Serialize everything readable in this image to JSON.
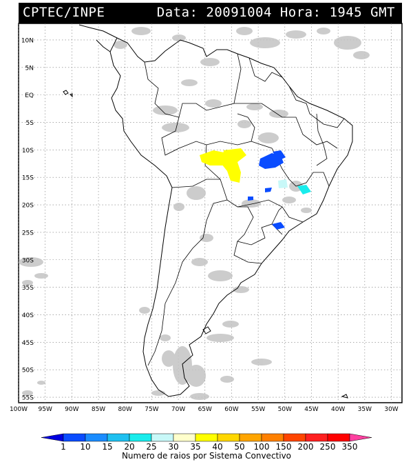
{
  "header": {
    "source": "CPTEC/INPE",
    "datetime": "Data: 20091004 Hora: 1945 GMT"
  },
  "map": {
    "lat_labels": [
      "10N",
      "5N",
      "EQ",
      "5S",
      "10S",
      "15S",
      "20S",
      "25S",
      "30S",
      "35S",
      "40S",
      "45S",
      "50S",
      "55S"
    ],
    "lon_labels": [
      "100W",
      "95W",
      "90W",
      "85W",
      "80W",
      "75W",
      "70W",
      "65W",
      "60W",
      "55W",
      "50W",
      "45W",
      "40W",
      "35W",
      "30W"
    ],
    "grid": "dotted",
    "extent": {
      "lon": [
        -100,
        -28
      ],
      "lat": [
        -56,
        13
      ]
    }
  },
  "colorbar": {
    "ticks": [
      "1",
      "10",
      "15",
      "20",
      "25",
      "30",
      "35",
      "40",
      "50",
      "100",
      "150",
      "200",
      "250",
      "350"
    ],
    "colors": [
      "#0000e0",
      "#0a4cff",
      "#1a8cff",
      "#1ec0f0",
      "#19ecec",
      "#c8f8f8",
      "#ffffcc",
      "#ffff00",
      "#ffd700",
      "#ffa500",
      "#ff8000",
      "#ff4500",
      "#ff2020",
      "#ff0000",
      "#ff40a0"
    ],
    "title": "Numero de raios por Sistema Convectivo"
  },
  "colors": {
    "cloud": "#bdbdbd",
    "land_border": "#000000"
  }
}
